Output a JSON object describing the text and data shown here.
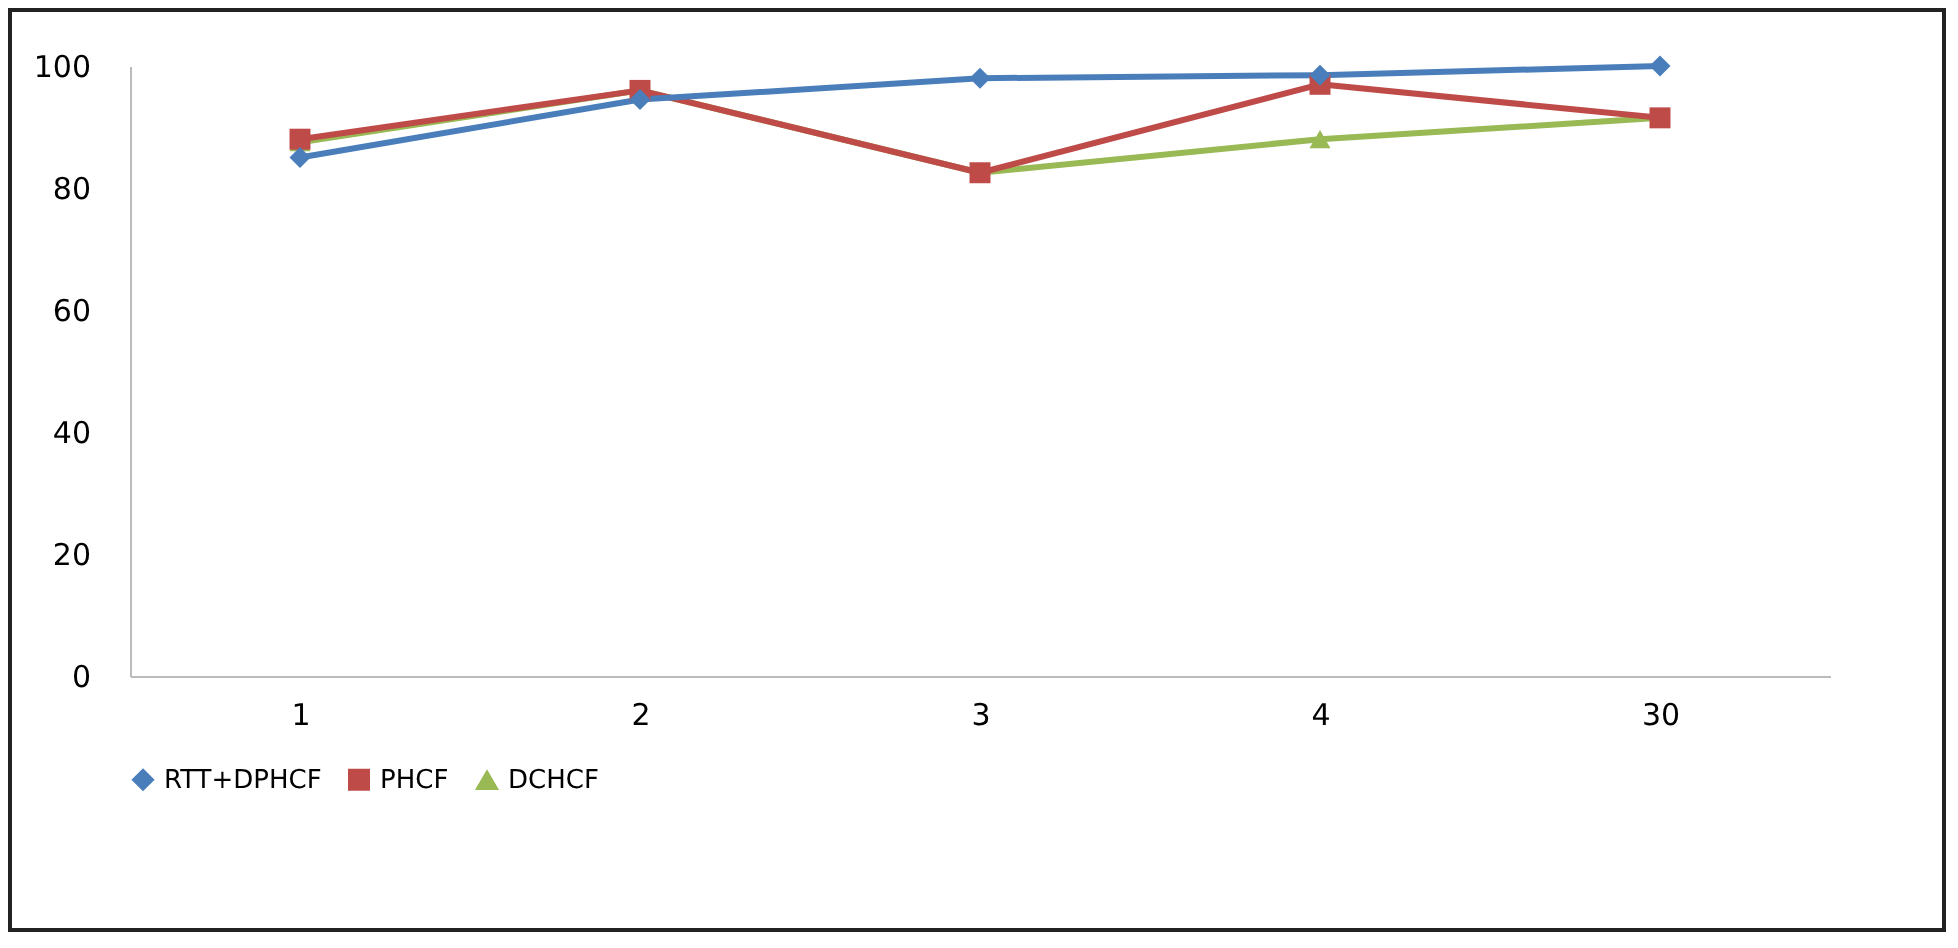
{
  "chart_data": {
    "type": "line",
    "categories": [
      "1",
      "2",
      "3",
      "4",
      "30"
    ],
    "series": [
      {
        "name": "RTT+DPHCF",
        "color": "#4a7ebb",
        "marker": "diamond",
        "values": [
          85,
          94.5,
          98,
          98.5,
          100
        ]
      },
      {
        "name": "PHCF",
        "color": "#be4b48",
        "marker": "square",
        "values": [
          88,
          96,
          82.5,
          97,
          91.5
        ]
      },
      {
        "name": "DCHCF",
        "color": "#98b954",
        "marker": "triangle",
        "values": [
          87.5,
          96,
          82.5,
          88,
          91.5
        ]
      }
    ],
    "ylim": [
      0,
      100
    ],
    "yticks": [
      0,
      20,
      40,
      60,
      80,
      100
    ],
    "grid": false,
    "legend": "bottom",
    "line_style": "solid"
  }
}
